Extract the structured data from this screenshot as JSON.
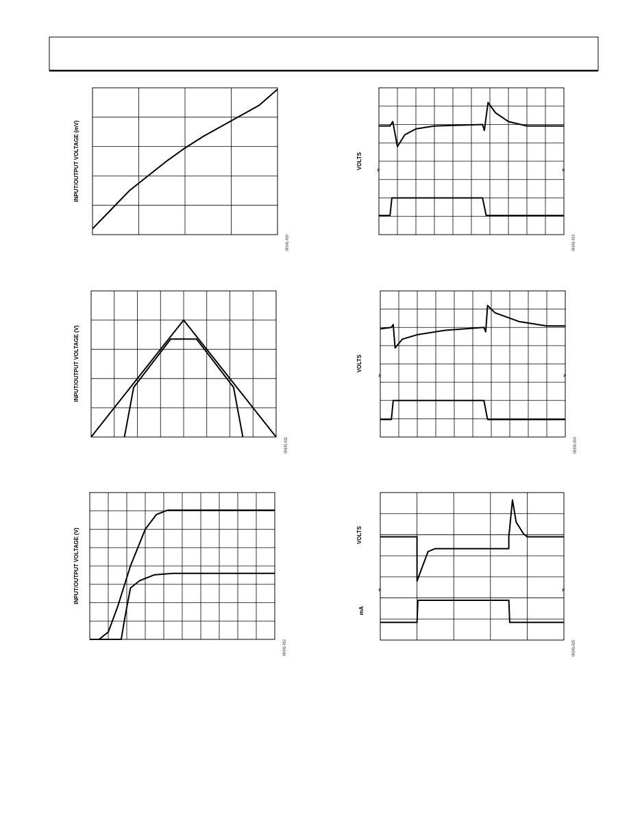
{
  "plots": [
    {
      "axis_label": "INPUT/OUTPUT VOLTAGE (mV)",
      "figure_id": "00141-010"
    },
    {
      "axis_label": "INPUT/OUTPUT VOLTAGE (V)",
      "figure_id": "00141-011"
    },
    {
      "axis_label": "INPUT/OUTPUT VOLTAGE (V)",
      "figure_id": "00141-012"
    },
    {
      "axis_label": "VOLTS",
      "figure_id": "00141-013"
    },
    {
      "axis_label": "VOLTS",
      "figure_id": "00141-014"
    },
    {
      "axis_label": "VOLTS",
      "axis_label_2": "mA",
      "figure_id": "00141-015"
    }
  ]
}
